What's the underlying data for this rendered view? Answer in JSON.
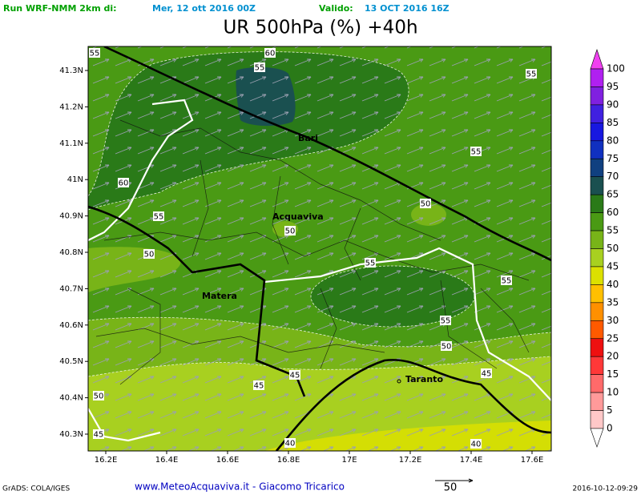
{
  "header": {
    "run": "Run WRF-NMM 2km di:",
    "run_date": "Mer, 12 ott 2016 00Z",
    "valid_label": "Valido:",
    "valid_date": "13 OCT 2016 16Z",
    "title": "UR 500hPa (%) +40h"
  },
  "map": {
    "x_labels": [
      "16.2E",
      "16.4E",
      "16.6E",
      "16.8E",
      "17E",
      "17.2E",
      "17.4E",
      "17.6E"
    ],
    "y_labels": [
      "41.3N",
      "41.2N",
      "41.1N",
      "41N",
      "40.9N",
      "40.8N",
      "40.7N",
      "40.6N",
      "40.5N",
      "40.4N",
      "40.3N"
    ],
    "cities": [
      "Bari",
      "Acquaviva",
      "Matera",
      "Taranto"
    ],
    "contour_labels": [
      "55",
      "60",
      "55",
      "55",
      "55",
      "60",
      "55",
      "50",
      "50",
      "50",
      "55",
      "55",
      "55",
      "50",
      "45",
      "45",
      "45",
      "50",
      "45",
      "40",
      "40"
    ]
  },
  "colorbar": {
    "labels": [
      "100",
      "95",
      "90",
      "85",
      "80",
      "75",
      "70",
      "65",
      "60",
      "55",
      "50",
      "45",
      "40",
      "35",
      "30",
      "25",
      "20",
      "15",
      "10",
      "5",
      "0"
    ],
    "colors": [
      "#f040f0",
      "#b020f0",
      "#8020e0",
      "#4020e0",
      "#1818e0",
      "#1030c0",
      "#104080",
      "#1a5050",
      "#2a7a18",
      "#4a9a14",
      "#78b418",
      "#a8d020",
      "#dce000",
      "#ffc000",
      "#ff9000",
      "#ff5a00",
      "#ee1010",
      "#ff3838",
      "#ff6a6a",
      "#ff9a9a",
      "#ffc8c8"
    ]
  },
  "footer": {
    "grads": "GrADS: COLA/IGES",
    "site": "www.MeteoAcquaviva.it - Giacomo Tricarico",
    "vector_scale": "50",
    "timestamp": "2016-10-12-09:29"
  }
}
